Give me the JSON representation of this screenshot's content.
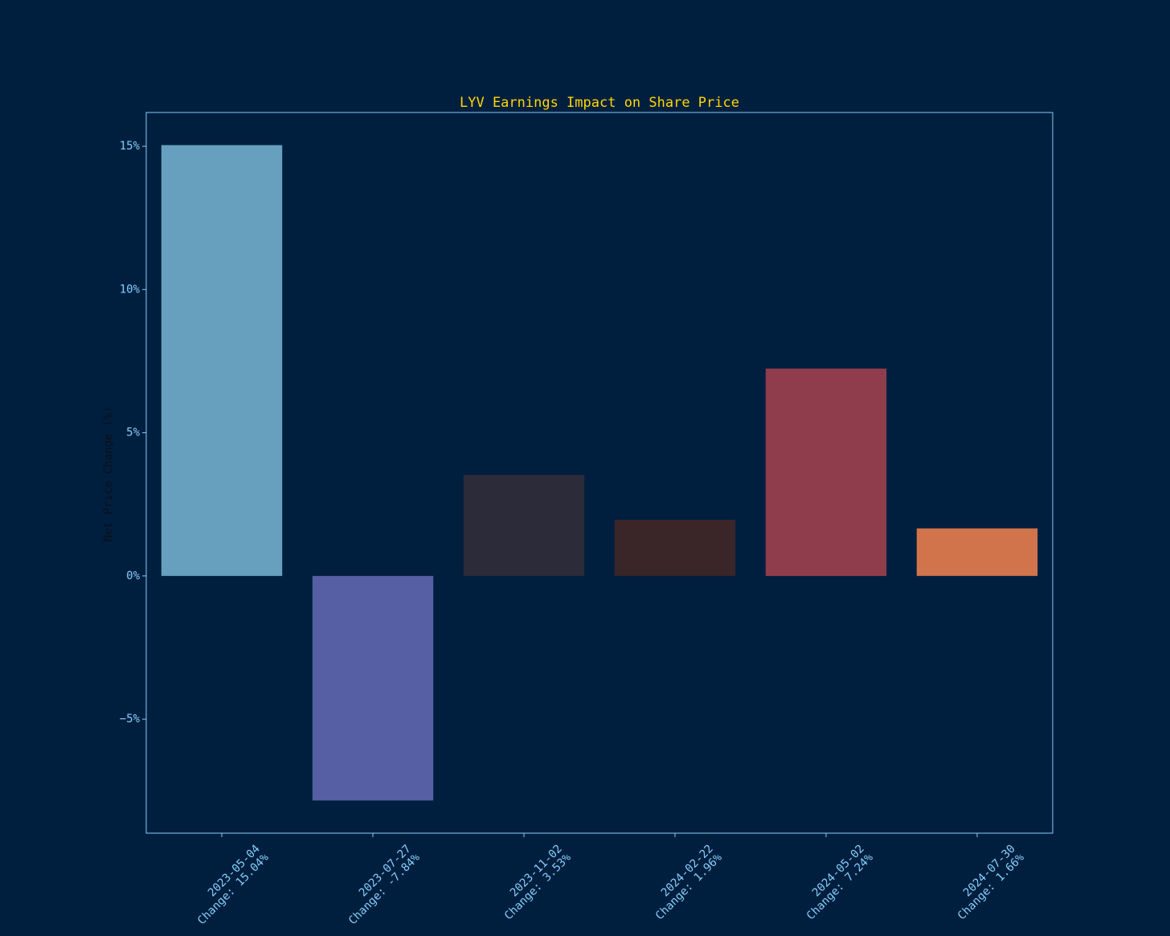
{
  "chart_data": {
    "type": "bar",
    "title": "LYV Earnings Impact on Share Price",
    "y_label": "Net Price Change (%)",
    "categories": [
      "2023-05-04",
      "2023-07-27",
      "2023-11-02",
      "2024-02-22",
      "2024-05-02",
      "2024-07-30"
    ],
    "values": [
      15.04,
      -7.84,
      3.53,
      1.96,
      7.24,
      1.66
    ],
    "value_labels": [
      "Change: 15.04%",
      "Change: -7.84%",
      "Change: 3.53%",
      "Change: 1.96%",
      "Change: 7.24%",
      "Change: 1.66%"
    ],
    "colors": [
      "#67a0bf",
      "#565ea4",
      "#2c2b3a",
      "#3a2529",
      "#8f3d4c",
      "#d1744b"
    ],
    "ylim": [
      -8.98,
      16.18
    ],
    "yticks": [
      {
        "value": -5,
        "label": "−5%"
      },
      {
        "value": 0,
        "label": "0%"
      },
      {
        "value": 5,
        "label": "5%"
      },
      {
        "value": 10,
        "label": "10%"
      },
      {
        "value": 15,
        "label": "15%"
      }
    ],
    "grid": false
  }
}
